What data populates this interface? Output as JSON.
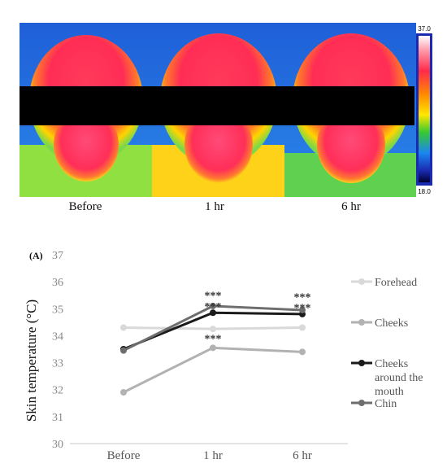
{
  "thermal": {
    "panels": [
      "Before",
      "1 hr",
      "6 hr"
    ],
    "scale_max": "37.0",
    "scale_min": "18.0"
  },
  "chart_data": {
    "type": "line",
    "panel_label": "(A)",
    "categories": [
      "Before",
      "1 hr",
      "6 hr"
    ],
    "ylabel": "Skin temperature (°C)",
    "ylim": [
      30,
      37
    ],
    "yticks": [
      30,
      31,
      32,
      33,
      34,
      35,
      36,
      37
    ],
    "series": [
      {
        "name": "Forehead",
        "values": [
          34.3,
          34.25,
          34.3
        ],
        "color": "#d9d9d9"
      },
      {
        "name": "Cheeks",
        "values": [
          31.9,
          33.55,
          33.4
        ],
        "color": "#b2b2b2"
      },
      {
        "name": "Cheeks around the mouth",
        "values": [
          33.5,
          34.85,
          34.8
        ],
        "color": "#1a1a1a"
      },
      {
        "name": "Chin",
        "values": [
          33.45,
          35.1,
          34.95
        ],
        "color": "#6e6e6e"
      }
    ],
    "annotations": [
      {
        "text": "***",
        "category": "1 hr",
        "y": 35.35
      },
      {
        "text": "***",
        "category": "1 hr",
        "y": 34.95
      },
      {
        "text": "***",
        "category": "1 hr",
        "y": 33.75
      },
      {
        "text": "***",
        "category": "6 hr",
        "y": 35.3
      },
      {
        "text": "***",
        "category": "6 hr",
        "y": 34.9
      }
    ]
  }
}
